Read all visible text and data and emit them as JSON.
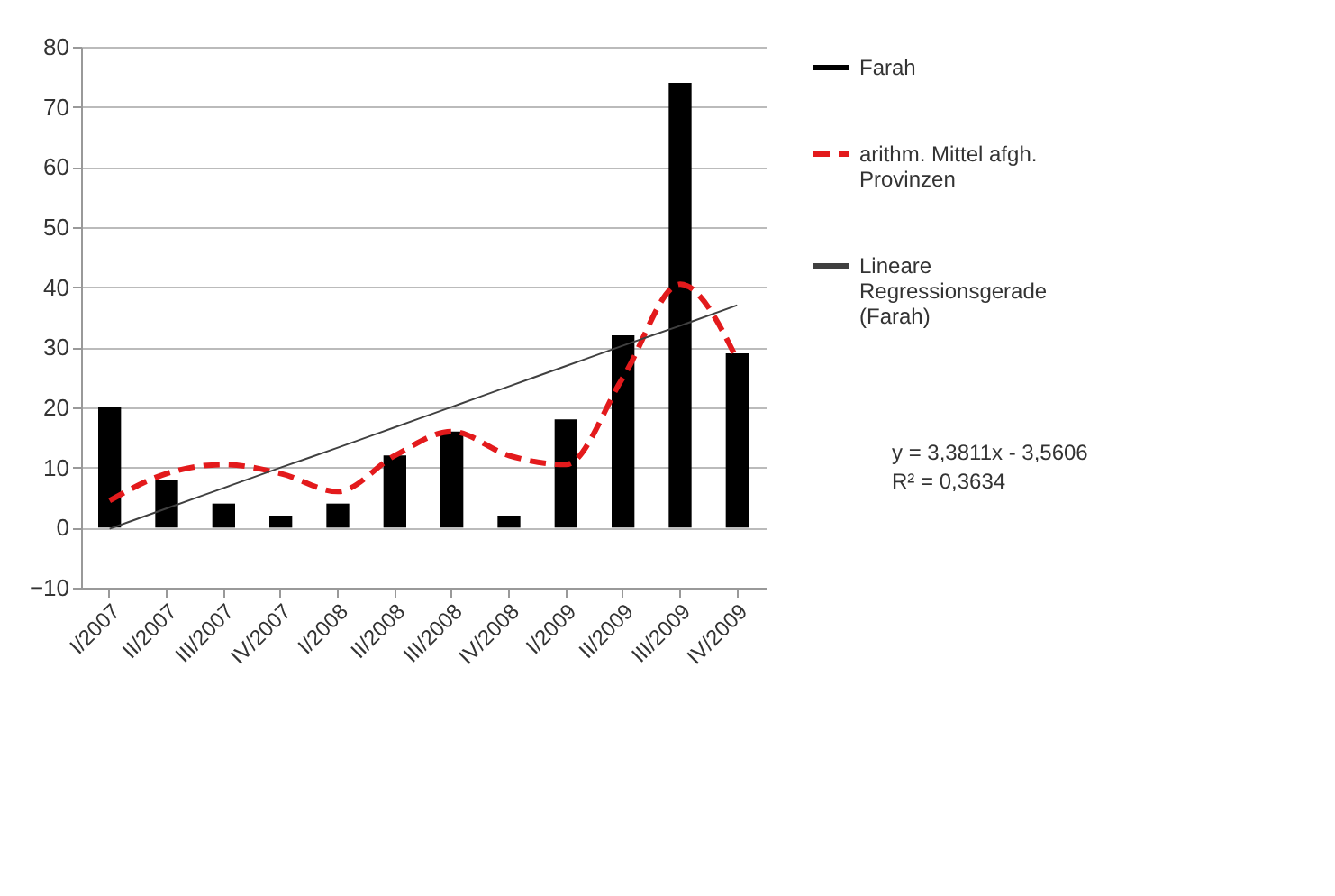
{
  "chart_data": {
    "type": "bar",
    "categories": [
      "I/2007",
      "II/2007",
      "III/2007",
      "IV/2007",
      "I/2008",
      "II/2008",
      "III/2008",
      "IV/2008",
      "I/2009",
      "II/2009",
      "III/2009",
      "IV/2009"
    ],
    "series": [
      {
        "name": "Farah",
        "type": "bar",
        "color": "#000000",
        "values": [
          20,
          8,
          4,
          2,
          4,
          12,
          16,
          2,
          18,
          32,
          74,
          29
        ]
      },
      {
        "name": "arithm. Mittel afgh. Provinzen",
        "type": "line",
        "line_style": "dashed",
        "color": "#e31a1c",
        "values": [
          4.5,
          9,
          10.5,
          9,
          6,
          12,
          16,
          12,
          10.5,
          25,
          40.5,
          28
        ]
      },
      {
        "name": "Lineare Regressionsgerade (Farah)",
        "type": "line",
        "line_style": "solid",
        "color": "#404040",
        "values": [
          -0.2,
          3.2,
          6.6,
          10.0,
          13.3,
          16.7,
          20.1,
          23.5,
          26.9,
          30.3,
          33.6,
          37.0
        ]
      }
    ],
    "ylim": [
      -10,
      80
    ],
    "yticks": [
      -10,
      0,
      10,
      20,
      30,
      40,
      50,
      60,
      70,
      80
    ],
    "grid": "y",
    "legend": "right",
    "annotations": [
      "y = 3,3811x - 3,5606",
      "R² = 0,3634"
    ]
  }
}
